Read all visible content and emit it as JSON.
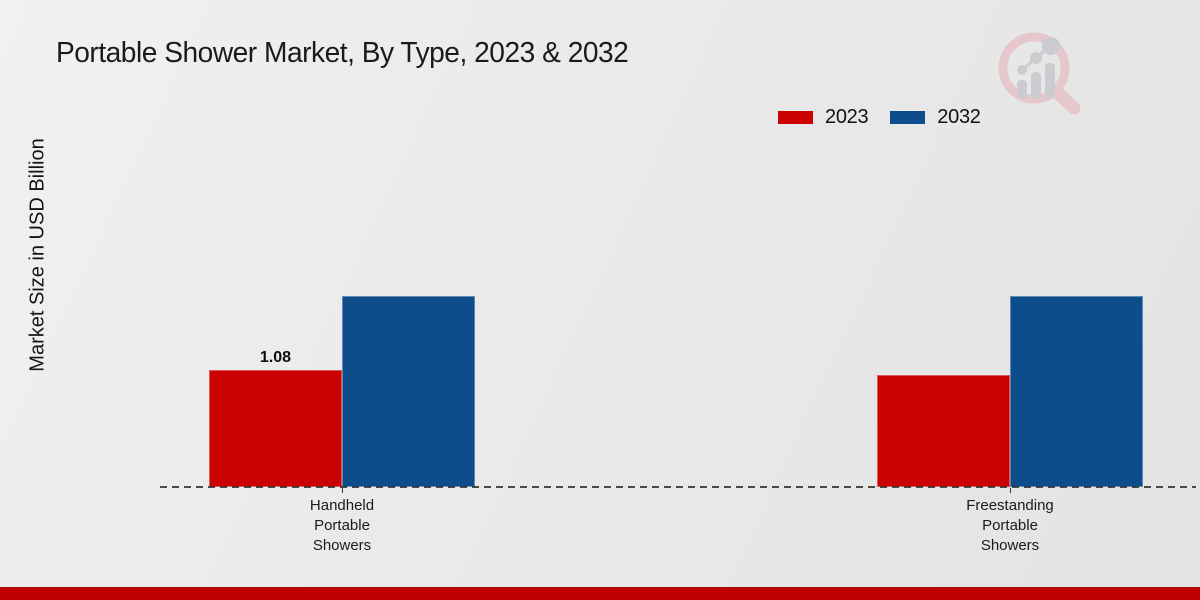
{
  "chart_data": {
    "type": "bar",
    "title": "Portable Shower Market, By Type, 2023 & 2032",
    "ylabel": "Market Size in USD Billion",
    "xlabel": "",
    "categories": [
      "Handheld Portable Showers",
      "Freestanding Portable Showers"
    ],
    "category_label_lines": [
      [
        "Handheld",
        "Portable",
        "Showers"
      ],
      [
        "Freestanding",
        "Portable",
        "Showers"
      ]
    ],
    "series": [
      {
        "name": "2023",
        "color": "#cc0202",
        "values": [
          1.08,
          1.03
        ]
      },
      {
        "name": "2032",
        "color": "#0d4d8c",
        "values": [
          1.76,
          1.76
        ]
      }
    ],
    "data_labels": [
      {
        "series_index": 0,
        "category_index": 0,
        "text": "1.08"
      }
    ],
    "ylim": [
      0,
      2.2
    ],
    "grid": false,
    "y_axis_visible": false,
    "baseline_style": "dashed",
    "legend_position": "top-right"
  },
  "branding": {
    "logo_icon": "magnifier-bar-chart-watermark",
    "bottom_band_color": "#bf0000"
  }
}
